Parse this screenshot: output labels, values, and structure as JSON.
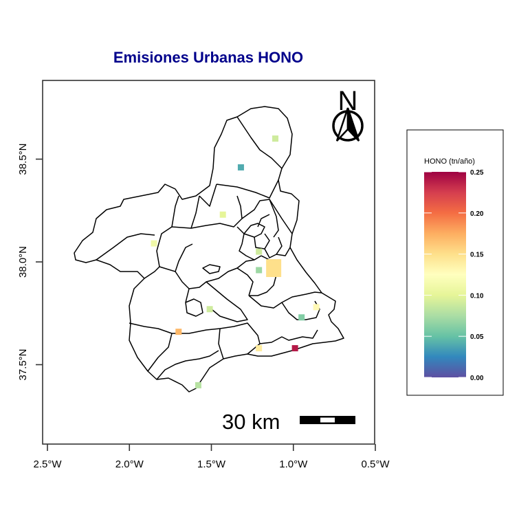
{
  "title": "Emisiones Urbanas HONO",
  "axes": {
    "x_ticks": [
      "2.5°W",
      "2.0°W",
      "1.5°W",
      "1.0°W",
      "0.5°W"
    ],
    "y_ticks": [
      "37.5°N",
      "38.0°N",
      "38.5°N"
    ]
  },
  "legend": {
    "title": "HONO (tn/año)",
    "ticks": [
      "0.25",
      "0.20",
      "0.15",
      "0.10",
      "0.05",
      "0.00"
    ],
    "colors": [
      "#5E4FA2",
      "#3288BD",
      "#66C2A5",
      "#ABDDA4",
      "#E6F598",
      "#FFFFBF",
      "#FEE08B",
      "#FDAE61",
      "#F46D43",
      "#D53E4F",
      "#9E0142"
    ]
  },
  "scale_bar": {
    "label": "30 km"
  },
  "north_arrow": {
    "label": "N"
  },
  "chart_data": {
    "type": "heatmap",
    "title": "Emisiones Urbanas HONO",
    "xlim": [
      -2.5,
      -0.5
    ],
    "ylim": [
      37.5,
      38.5
    ],
    "value_range": [
      0.0,
      0.25
    ],
    "unit": "tn/año",
    "cells": [
      {
        "lon": -1.11,
        "lat": 38.6,
        "value": 0.09
      },
      {
        "lon": -1.32,
        "lat": 38.46,
        "value": 0.04
      },
      {
        "lon": -1.43,
        "lat": 38.23,
        "value": 0.1
      },
      {
        "lon": -1.85,
        "lat": 38.09,
        "value": 0.11
      },
      {
        "lon": -1.21,
        "lat": 38.05,
        "value": 0.09
      },
      {
        "lon": -1.12,
        "lat": 37.97,
        "value": 0.15
      },
      {
        "lon": -1.21,
        "lat": 37.96,
        "value": 0.07
      },
      {
        "lon": -1.51,
        "lat": 37.77,
        "value": 0.09
      },
      {
        "lon": -0.95,
        "lat": 37.73,
        "value": 0.06
      },
      {
        "lon": -0.86,
        "lat": 37.78,
        "value": 0.13
      },
      {
        "lon": -1.7,
        "lat": 37.66,
        "value": 0.17
      },
      {
        "lon": -0.99,
        "lat": 37.58,
        "value": 0.24
      },
      {
        "lon": -1.21,
        "lat": 37.58,
        "value": 0.14
      },
      {
        "lon": -1.58,
        "lat": 37.4,
        "value": 0.08
      }
    ]
  }
}
